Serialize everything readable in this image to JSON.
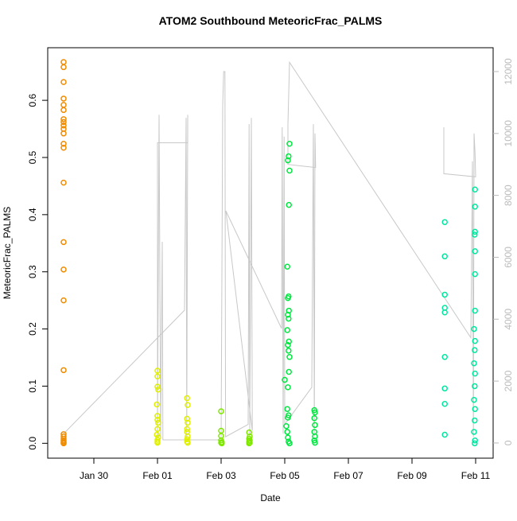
{
  "chart_data": {
    "type": "scatter",
    "title": "ATOM2 Southbound MeteoricFrac_PALMS",
    "x_label": "Date",
    "y_label": "MeteoricFrac_PALMS",
    "xlim": [
      28.55,
      42.55
    ],
    "xticks": [
      {
        "value": 30,
        "label": "Jan 30"
      },
      {
        "value": 32,
        "label": "Feb 01"
      },
      {
        "value": 34,
        "label": "Feb 03"
      },
      {
        "value": 36,
        "label": "Feb 05"
      },
      {
        "value": 38,
        "label": "Feb 07"
      },
      {
        "value": 40,
        "label": "Feb 09"
      },
      {
        "value": 42,
        "label": "Feb 11"
      }
    ],
    "ylim": [
      -0.026,
      0.692
    ],
    "yticks": [
      {
        "value": 0,
        "label": "0.0"
      },
      0.1,
      0.2,
      0.3,
      0.4,
      0.5,
      0.6
    ],
    "y2lim": [
      -490,
      12770
    ],
    "y2ticks": [
      0,
      2000,
      4000,
      6000,
      8000,
      10000,
      12000
    ],
    "series": [
      {
        "color": "#f08c00",
        "x": [
          29.05,
          29.05,
          29.05,
          29.05,
          29.05,
          29.05,
          29.05,
          29.05,
          29.05,
          29.05,
          29.05,
          29.05,
          29.05,
          29.05,
          29.05,
          29.05,
          29.05,
          29.05,
          29.05,
          29.05,
          29.05,
          29.05,
          29.05,
          29.05,
          29.05
        ],
        "values": [
          0.667,
          0.658,
          0.632,
          0.603,
          0.592,
          0.583,
          0.567,
          0.562,
          0.556,
          0.55,
          0.542,
          0.524,
          0.517,
          0.456,
          0.352,
          0.304,
          0.25,
          0.128,
          0.016,
          0.012,
          0.008,
          0.005,
          0.003,
          0.001,
          0
        ]
      },
      {
        "color": "#e0f000",
        "x": [
          32.0,
          32.0,
          32.0,
          32.02,
          31.98,
          32.0,
          32.0,
          32.02,
          32.0,
          31.98,
          32.02,
          32.0,
          32.0,
          32.0,
          32.93,
          32.95,
          32.93,
          32.95,
          32.93,
          32.93,
          32.95,
          32.93,
          32.93,
          32.95
        ],
        "values": [
          0.127,
          0.117,
          0.099,
          0.094,
          0.068,
          0.048,
          0.041,
          0.036,
          0.025,
          0.015,
          0.01,
          0.006,
          0.003,
          0.001,
          0.079,
          0.067,
          0.043,
          0.036,
          0.025,
          0.02,
          0.012,
          0.007,
          0.003,
          0.001
        ]
      },
      {
        "color": "#80e800",
        "x": [
          34.0,
          34.0,
          34.0,
          34.0,
          34.02,
          34.0,
          34.02,
          34.88,
          34.9,
          34.88,
          34.9,
          34.88,
          34.9,
          34.88
        ],
        "values": [
          0.056,
          0.022,
          0.013,
          0.005,
          0.002,
          0.001,
          0,
          0.019,
          0.012,
          0.008,
          0.005,
          0.003,
          0.001,
          0
        ]
      },
      {
        "color": "#00e840",
        "x": [
          36.15,
          36.12,
          36.1,
          36.15,
          36.13,
          36.08,
          36.12,
          36.1,
          36.13,
          36.1,
          36.12,
          36.08,
          36.13,
          36.1,
          36.12,
          36.15,
          36.13,
          36.0,
          36.1,
          36.08,
          36.12,
          36.1,
          36.05,
          36.08,
          36.1,
          36.12,
          36.15,
          36.93,
          36.95,
          36.93,
          36.95,
          36.93,
          36.95,
          36.93,
          36.95
        ],
        "values": [
          0.524,
          0.502,
          0.495,
          0.477,
          0.417,
          0.309,
          0.257,
          0.254,
          0.232,
          0.225,
          0.218,
          0.198,
          0.178,
          0.172,
          0.162,
          0.151,
          0.125,
          0.111,
          0.098,
          0.06,
          0.049,
          0.045,
          0.03,
          0.02,
          0.01,
          0.003,
          0,
          0.058,
          0.054,
          0.044,
          0.032,
          0.02,
          0.012,
          0.005,
          0.001
        ]
      },
      {
        "color": "#00e8a0",
        "x": [
          41.03,
          41.03,
          41.03,
          41.03,
          41.03,
          41.03,
          41.03,
          41.03,
          41.03,
          41.98,
          41.98,
          41.98,
          41.97,
          41.98,
          41.98,
          41.98,
          41.95,
          41.98,
          41.97,
          41.95,
          41.98,
          41.97,
          41.95,
          41.98,
          41.97,
          41.95,
          41.98,
          41.97
        ],
        "values": [
          0.387,
          0.327,
          0.26,
          0.237,
          0.229,
          0.151,
          0.096,
          0.069,
          0.015,
          0.444,
          0.414,
          0.37,
          0.365,
          0.336,
          0.296,
          0.232,
          0.2,
          0.179,
          0.163,
          0.14,
          0.122,
          0.1,
          0.076,
          0.06,
          0.04,
          0.02,
          0.005,
          0
        ]
      },
      {
        "color": "#c8c8c8",
        "axis": "y2",
        "line": true,
        "x": [
          29.05,
          32.85,
          32.9,
          32.92,
          32.95,
          32.95,
          32.0,
          32.0,
          32.05,
          32.1,
          32.15,
          32.17,
          34.0,
          34.05,
          34.08,
          34.12,
          34.14,
          34.85,
          34.88,
          34.9,
          34.95,
          34.98,
          34.15,
          35.9,
          35.92,
          35.95,
          35.98,
          36.0,
          36.85,
          36.9,
          36.93,
          36.95,
          36.97,
          36.1,
          36.1,
          36.15,
          41.85,
          41.9,
          41.93,
          41.95,
          41.98,
          42.0,
          41.0,
          41.0
        ],
        "values": [
          300,
          4290,
          10500,
          200,
          10600,
          9700,
          9700,
          200,
          10600,
          200,
          6500,
          100,
          100,
          10900,
          12000,
          12000,
          200,
          600,
          10300,
          200,
          10500,
          400,
          7500,
          3700,
          10200,
          300,
          9900,
          600,
          1800,
          10300,
          200,
          10000,
          8900,
          9000,
          10300,
          12300,
          3400,
          9100,
          200,
          10000,
          9400,
          8600,
          8700,
          10200
        ]
      }
    ]
  }
}
